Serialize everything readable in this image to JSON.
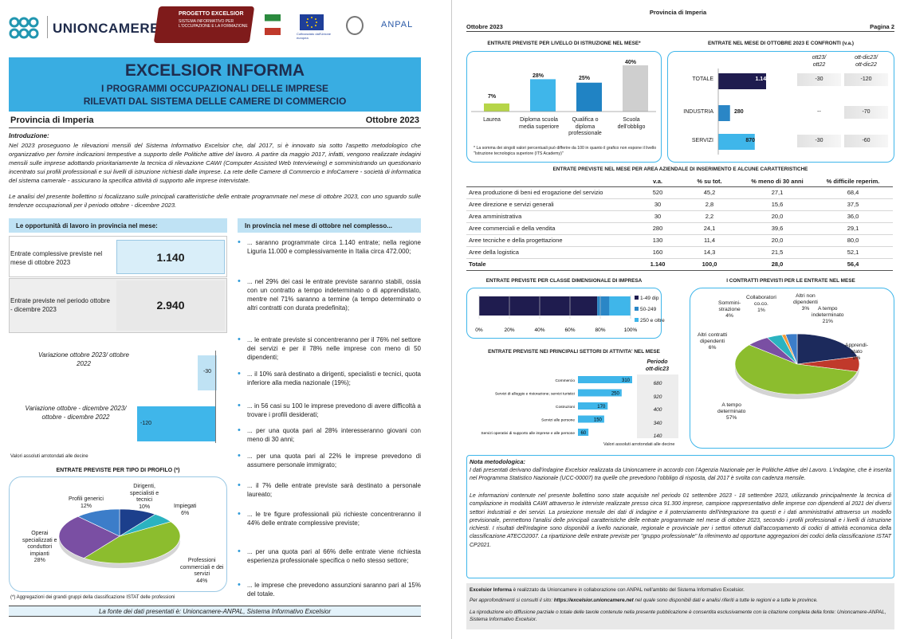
{
  "header": {
    "org": "UNIONCAMERE",
    "project_title": "PROGETTO EXCELSIOR",
    "project_sub": "SISTEMA INFORMATIVO PER L'OCCUPAZIONE E LA FORMAZIONE",
    "eu_caption": "Cofinanziato dall'Unione europea",
    "anpal": "ANPAL"
  },
  "title": {
    "main": "EXCELSIOR INFORMA",
    "line1": "I PROGRAMMI OCCUPAZIONALI DELLE IMPRESE",
    "line2": "RILEVATI DAL SISTEMA DELLE CAMERE DI COMMERCIO"
  },
  "province": "Provincia di Imperia",
  "period": "Ottobre 2023",
  "intro": {
    "heading": "Introduzione:",
    "p1": "Nel 2023 proseguono le rilevazioni mensili del Sistema Informativo Excelsior che, dal 2017, si è innovato sia sotto l'aspetto metodologico che organizzativo per fornire indicazioni tempestive a supporto delle Politiche attive del lavoro. A partire da maggio 2017, infatti, vengono realizzate indagini mensili sulle imprese adottando prioritariamente la tecnica di rilevazione CAWI (Computer Assisted Web Interviewing) e somministrando un questionario incentrato sui profili professionali e sui livelli di istruzione richiesti dalle imprese. La rete delle Camere di Commercio e InfoCamere - società di informatica del sistema camerale - assicurano la specifica attività di supporto alle imprese intervistate.",
    "p2": "Le analisi del presente bollettino si focalizzano sulle principali caratteristiche delle entrate programmate nel mese di ottobre 2023, con uno sguardo sulle tendenze occupazionali per il periodo ottobre - dicembre 2023."
  },
  "opportunities": {
    "heading": "Le opportunità di lavoro in provincia nel mese:",
    "label1": "Entrate complessive previste nel mese di ottobre 2023",
    "value1": "1.140",
    "label2": "Entrate previste nel periodo ottobre - dicembre 2023",
    "value2": "2.940",
    "var1_label": "Variazione ottobre 2023/ ottobre 2022",
    "var1_value": "-30",
    "var2_label": "Variazione ottobre - dicembre 2023/ ottobre - dicembre 2022",
    "var2_value": "-120",
    "note": "Valori assoluti arrotondati alle decine"
  },
  "bullets_heading": "In provincia nel mese di ottobre nel complesso...",
  "bullets": [
    "... saranno programmate circa 1.140 entrate; nella regione Liguria 11.000 e complessivamente in Italia circa 472.000;",
    "... nel 29% dei casi le entrate previste saranno stabili, ossia con un contratto a tempo indeterminato o di apprendistato, mentre nel 71% saranno a termine (a tempo determinato o altri contratti con durata predefinita);",
    "... le entrate previste si concentreranno per il 76% nel settore dei servizi e per il 78% nelle imprese con meno di 50 dipendenti;",
    "... il 10% sarà destinato a dirigenti, specialisti e tecnici, quota inferiore alla media nazionale (19%);",
    "... in 56 casi su 100 le imprese prevedono di avere difficoltà a trovare i profili desiderati;",
    "... per una quota pari al 28% interesseranno giovani con meno di 30 anni;",
    "... per una quota pari al 22% le imprese prevedono di assumere personale immigrato;",
    "... il 7% delle entrate previste sarà destinato a personale laureato;",
    "... le tre figure professionali più richieste concentreranno il 44% delle entrate complessive previste;",
    "... per una quota pari al 66% delle entrate viene richiesta esperienza professionale specifica o nello stesso settore;",
    "... le imprese che prevedono assunzioni saranno pari al 15% del totale."
  ],
  "profile_pie": {
    "title": "ENTRATE PREVISTE PER TIPO DI PROFILO (*)",
    "footnote": "(*) Aggregazioni dei grandi gruppi della classificazione ISTAT delle professioni",
    "slices": [
      {
        "name": "Dirigenti, specialisti e tecnici",
        "value": 10,
        "color": "#1c3f8c"
      },
      {
        "name": "Impiegati",
        "value": 6,
        "color": "#2bb3c0"
      },
      {
        "name": "Professioni commerciali e dei servizi",
        "value": 44,
        "color": "#8cbd2e"
      },
      {
        "name": "Operai specializzati e conduttori impianti",
        "value": 28,
        "color": "#7a4fa3"
      },
      {
        "name": "Profili generici",
        "value": 12,
        "color": "#3c7dc9"
      }
    ],
    "l_dir": "Dirigenti,",
    "l_dir2": "specialisti e",
    "l_dir3": "tecnici",
    "l_dir4": "10%",
    "l_imp": "Impiegati",
    "l_imp2": "6%",
    "l_com": "Professioni",
    "l_com2": "commerciali e dei",
    "l_com3": "servizi",
    "l_com4": "44%",
    "l_ope": "Operai",
    "l_ope2": "specializzati e",
    "l_ope3": "conduttori",
    "l_ope4": "impianti",
    "l_ope5": "28%",
    "l_gen": "Profili generici",
    "l_gen2": "12%"
  },
  "source": "La fonte dei dati presentati è: Unioncamere-ANPAL, Sistema Informativo Excelsior",
  "p2": {
    "top": "Provincia di Imperia",
    "date": "Ottobre 2023",
    "page": "Pagina 2"
  },
  "education": {
    "title": "ENTRATE PREVISTE PER LIVELLO DI ISTRUZIONE NEL MESE*",
    "note": "* La somma dei singoli valori percentuali può differire da 100 in quanto il grafico non espone il livello \"Istruzione tecnologica superiore (ITS Academy)\"",
    "bars": [
      {
        "label": "Laurea",
        "value": 7,
        "color": "#b6d548"
      },
      {
        "label": "Diploma scuola media superiore",
        "value": 28,
        "color": "#3fb6ea"
      },
      {
        "label": "Qualifica o diploma professionale",
        "value": 25,
        "color": "#2083c4"
      },
      {
        "label": "Scuola dell'obbligo",
        "value": 40,
        "color": "#cfcfcf"
      }
    ],
    "v1": "7%",
    "v2": "28%",
    "v3": "25%",
    "v4": "40%",
    "c1": "Laurea",
    "c2a": "Diploma scuola",
    "c2b": "media superiore",
    "c3a": "Qualifica o",
    "c3b": "diploma",
    "c3c": "professionale",
    "c4a": "Scuola",
    "c4b": "dell'obbligo"
  },
  "comparison": {
    "title": "ENTRATE NEL MESE DI  OTTOBRE 2023 E CONFRONTI (v.a.)",
    "col1a": "ott23/",
    "col1b": "ott22",
    "col2a": "ott-dic23/",
    "col2b": "ott-dic22",
    "rows": [
      {
        "label": "TOTALE",
        "value": 1140,
        "value_text": "1.140",
        "c1": "-30",
        "c2": "-120",
        "color": "#1f1c4f"
      },
      {
        "label": "INDUSTRIA",
        "value": 280,
        "value_text": "280",
        "c1": "--",
        "c2": "-70",
        "color": "#2a86c6"
      },
      {
        "label": "SERVIZI",
        "value": 870,
        "value_text": "870",
        "c1": "-30",
        "c2": "-60",
        "color": "#3fb6ea"
      }
    ]
  },
  "areas": {
    "title": "ENTRATE PREVISTE NEL MESE PER AREA AZIENDALE DI INSERIMENTO E ALCUNE CARATTERISTICHE",
    "headers": [
      "",
      "v.a.",
      "% su tot.",
      "% meno di 30 anni",
      "% difficile reperim."
    ],
    "rows": [
      [
        "Area produzione di beni ed erogazione del servizio",
        "520",
        "45,2",
        "27,1",
        "68,4"
      ],
      [
        "Aree direzione e servizi generali",
        "30",
        "2,8",
        "15,6",
        "37,5"
      ],
      [
        "Area amministrativa",
        "30",
        "2,2",
        "20,0",
        "36,0"
      ],
      [
        "Aree commerciali e della vendita",
        "280",
        "24,1",
        "39,6",
        "29,1"
      ],
      [
        "Aree tecniche e della progettazione",
        "130",
        "11,4",
        "20,0",
        "80,0"
      ],
      [
        "Aree della logistica",
        "160",
        "14,3",
        "21,5",
        "52,1"
      ]
    ],
    "total": [
      "Totale",
      "1.140",
      "100,0",
      "28,0",
      "56,4"
    ]
  },
  "size": {
    "title": "ENTRATE PREVISTE PER CLASSE DIMENSIONALE DI IMPRESA",
    "segments": [
      {
        "name": "1-49 dip",
        "value": 78,
        "color": "#1f1c4f"
      },
      {
        "name": "50-249",
        "value": 8,
        "color": "#2a86c6"
      },
      {
        "name": "250 e oltre",
        "value": 14,
        "color": "#3fb6ea"
      }
    ],
    "ticks": [
      "0%",
      "20%",
      "40%",
      "60%",
      "80%",
      "100%"
    ]
  },
  "sectors": {
    "title": "ENTRATE PREVISTE NEI PRINCIPALI SETTORI DI ATTIVITA' NEL MESE",
    "period_a": "Periodo",
    "period_b": "ott-dic23",
    "note": "Valori assoluti arrotondati alle decine",
    "rows": [
      {
        "label": "Commercio",
        "value": 310,
        "text": "310",
        "period": "680"
      },
      {
        "label": "Servizi di alloggio e ristorazione; servizi turistici",
        "value": 250,
        "text": "250",
        "period": "920"
      },
      {
        "label": "Costruzioni",
        "value": 170,
        "text": "170",
        "period": "400"
      },
      {
        "label": "Servizi alle persone",
        "value": 150,
        "text": "150",
        "period": "340"
      },
      {
        "label": "Servizi operativi di supporto alle imprese e alle persone",
        "value": 60,
        "text": "60",
        "period": "140"
      }
    ]
  },
  "contracts": {
    "title": "I CONTRATTI PREVISTI PER LE ENTRATE NEL MESE",
    "slices": [
      {
        "name": "A tempo indeterminato",
        "value": 21,
        "color": "#1c2a5c"
      },
      {
        "name": "Apprendistato",
        "value": 8,
        "color": "#c0392b"
      },
      {
        "name": "A tempo determinato",
        "value": 57,
        "color": "#8cbd2e"
      },
      {
        "name": "Altri contratti dipendenti",
        "value": 6,
        "color": "#7a4fa3"
      },
      {
        "name": "Somministrazione",
        "value": 4,
        "color": "#2bb3c0"
      },
      {
        "name": "Collaboratori co.co.",
        "value": 1,
        "color": "#f29b38"
      },
      {
        "name": "Altri non dipendenti",
        "value": 3,
        "color": "#3c7dc9"
      }
    ],
    "l_ind": "A tempo",
    "l_ind2": "indeterminato",
    "l_ind3": "21%",
    "l_app": "Apprendi-",
    "l_app2": "stato",
    "l_app3": "8%",
    "l_det": "A tempo",
    "l_det2": "determinato",
    "l_det3": "57%",
    "l_alt": "Altri contratti",
    "l_alt2": "dipendenti",
    "l_alt3": "6%",
    "l_som": "Sommini-",
    "l_som2": "strazione",
    "l_som3": "4%",
    "l_col": "Collaboratori",
    "l_col2": "co.co.",
    "l_col3": "1%",
    "l_and": "Altri non",
    "l_and2": "dipendenti",
    "l_and3": "3%"
  },
  "method": {
    "heading": "Nota metodologica:",
    "p1": "I dati presentati derivano dall'indagine Excelsior realizzata da Unioncamere in accordo con l'Agenzia Nazionale per le Politiche Attive del Lavoro. L'indagine, che è inserita nel Programma Statistico Nazionale (UCC-00007) tra quelle che prevedono l'obbligo di risposta, dal 2017 è svolta con cadenza mensile.",
    "p2": "Le informazioni contenute nel presente bollettino sono state acquisite nel periodo 01 settembre 2023 - 18 settembre 2023, utilizzando principalmente la tecnica di compilazione in modalità CAWI attraverso le interviste realizzate presso circa 91.300 imprese, campione rappresentativo delle imprese con dipendenti al 2021 dei diversi settori industriali e dei servizi. La proiezione mensile dei dati di indagine e il potenziamento dell'integrazione tra questi e i dati amministrativi attraverso un modello previsionale, permettono l'analisi delle principali caratteristiche delle entrate programmate nel mese di ottobre 2023, secondo i profili professionali e i livelli di istruzione richiesti. I risultati dell'indagine sono disponibili a livello nazionale, regionale e provinciale per i settori ottenuti dall'accorpamento di codici di attività economica della classificazione ATECO2007. La ripartizione delle entrate previste per \"gruppo professionale\" fa riferimento ad opportune aggregazioni dei codici della classificazione ISTAT CP2021."
  },
  "footer": {
    "l1a": "Excelsior Informa",
    "l1b": " è realizzato da Unioncamere in collaborazione con ANPAL nell'ambito del Sistema Informativo Excelsior.",
    "l2a": "Per approfondimenti si consulti il sito: ",
    "l2b": "https://excelsior.unioncamere.net",
    "l2c": " nel quale sono disponibili dati e analisi riferiti a tutte le regioni e a tutte le province.",
    "l3": "La riproduzione e/o diffusione parziale o totale delle tavole contenute nella presente pubblicazione è consentita esclusivamente con la citazione completa della fonte: Unioncamere-ANPAL, Sistema Informativo Excelsior."
  }
}
